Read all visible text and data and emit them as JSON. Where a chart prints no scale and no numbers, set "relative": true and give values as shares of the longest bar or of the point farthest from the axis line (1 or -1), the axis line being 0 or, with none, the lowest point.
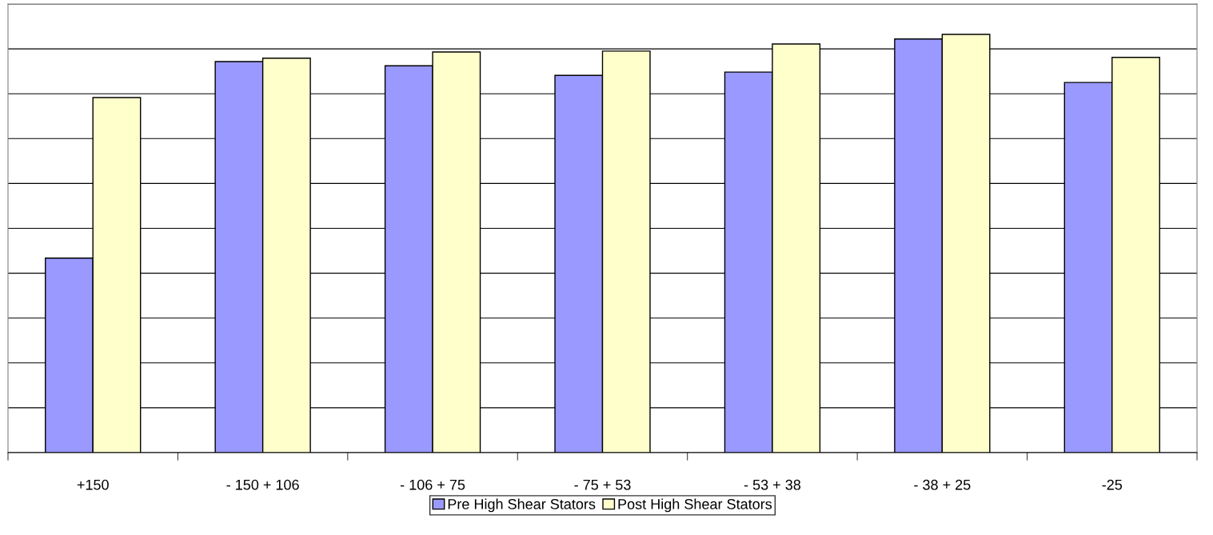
{
  "chart_data": {
    "type": "bar",
    "relative": true,
    "categories": [
      "+150",
      "- 150 + 106",
      "- 106 + 75",
      "- 75 + 53",
      "- 53 + 38",
      "- 38 + 25",
      "-25"
    ],
    "series": [
      {
        "name": "Pre High Shear Stators",
        "color": "#9999ff",
        "values": [
          0.465,
          0.935,
          0.925,
          0.902,
          0.91,
          0.989,
          0.885
        ]
      },
      {
        "name": "Post High Shear Stators",
        "color": "#ffffcc",
        "values": [
          0.849,
          0.943,
          0.958,
          0.96,
          0.977,
          1,
          0.945
        ]
      }
    ],
    "grid": "y",
    "legend": "bottom"
  }
}
